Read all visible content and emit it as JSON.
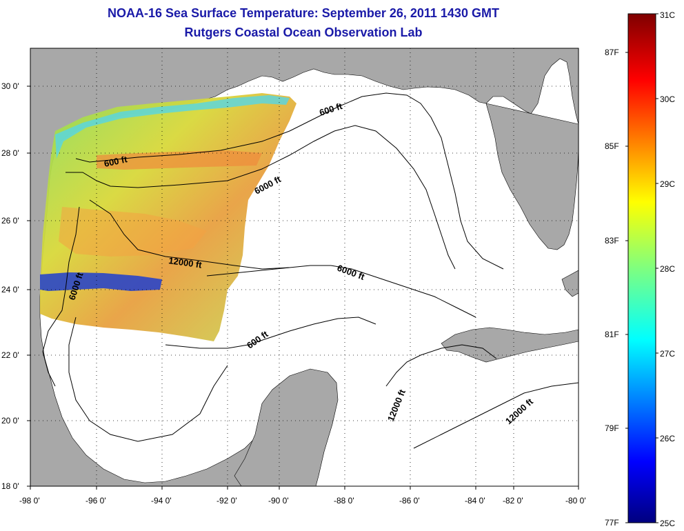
{
  "title": "NOAA-16 Sea Surface Temperature:  September 26, 2011 1430 GMT",
  "subtitle": "Rutgers Coastal Ocean Observation Lab",
  "axes": {
    "lat_ticks": [
      "30 0'",
      "28 0'",
      "26 0'",
      "24 0'",
      "22 0'",
      "20 0'",
      "18 0'"
    ],
    "lon_ticks": [
      "-98 0'",
      "-96 0'",
      "-94 0'",
      "-92 0'",
      "-90 0'",
      "-88 0'",
      "-86 0'",
      "-84 0'",
      "-82 0'",
      "-80 0'"
    ]
  },
  "contour_labels": {
    "c1": "600 ft",
    "c2": "600 ft",
    "c3": "6000 ft",
    "c4": "12000 ft",
    "c5": "6000 ft",
    "c6": "6000 ft",
    "c7": "600 ft",
    "c8": "12000 ft",
    "c9": "12000 ft"
  },
  "colorbar": {
    "celsius": [
      "31C",
      "30C",
      "29C",
      "28C",
      "27C",
      "26C",
      "25C"
    ],
    "fahrenheit": [
      "87F",
      "85F",
      "83F",
      "81F",
      "79F",
      "77F"
    ]
  },
  "colors": {
    "land": "#a8a8a8",
    "ocean": "#ffffff",
    "title": "#1a1aa8"
  }
}
